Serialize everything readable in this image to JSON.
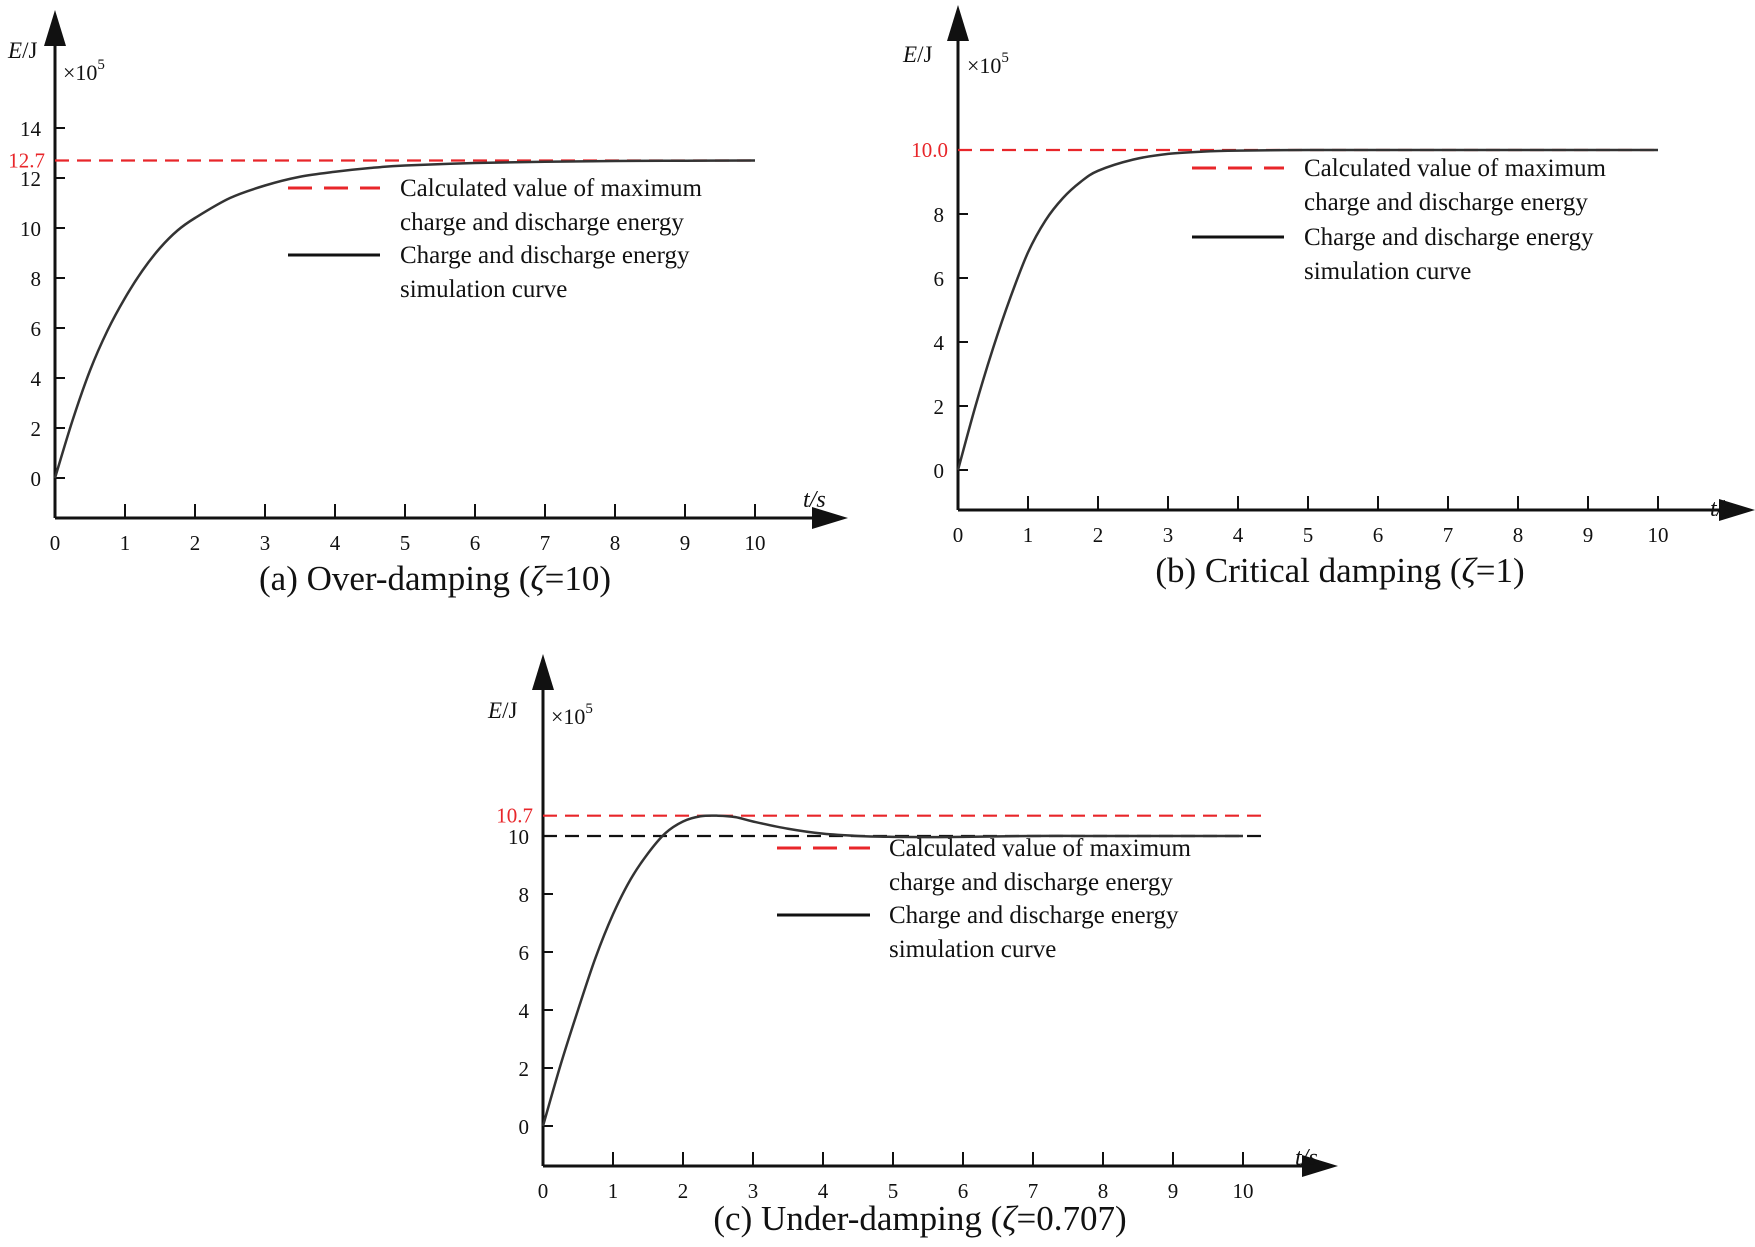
{
  "chart_data": [
    {
      "type": "line",
      "id": "a",
      "caption_prefix": "(a) Over-damping (",
      "caption_symbol": "ζ",
      "caption_suffix": "=10)",
      "ylabel_var": "E",
      "ylabel_unit": "/J",
      "ylabel_multiplier_base": "×10",
      "ylabel_multiplier_exp": "5",
      "xlabel": "t/s",
      "xlim": [
        0,
        10
      ],
      "ylim": [
        0,
        14
      ],
      "x_ticks": [
        "0",
        "1",
        "2",
        "3",
        "4",
        "5",
        "6",
        "7",
        "8",
        "9",
        "10"
      ],
      "y_ticks": [
        "0",
        "2",
        "4",
        "6",
        "8",
        "10",
        "12",
        "14"
      ],
      "y_tick_values": [
        0,
        2,
        4,
        6,
        8,
        10,
        12,
        14
      ],
      "reference_lines": [
        {
          "value": 12.7,
          "label": "12.7",
          "style": "red-dashed"
        }
      ],
      "series": [
        {
          "name": "Charge and discharge energy simulation curve",
          "x": [
            0,
            0.25,
            0.5,
            0.75,
            1,
            1.25,
            1.5,
            1.75,
            2,
            2.5,
            3,
            3.5,
            4,
            4.5,
            5,
            6,
            7,
            8,
            9,
            10
          ],
          "values": [
            0,
            2.3,
            4.3,
            5.9,
            7.2,
            8.3,
            9.2,
            9.9,
            10.4,
            11.2,
            11.7,
            12.05,
            12.25,
            12.4,
            12.5,
            12.6,
            12.65,
            12.68,
            12.69,
            12.7
          ]
        }
      ],
      "legend": [
        {
          "style": "red-dashed",
          "line1": "Calculated value of maximum",
          "line2": "charge and discharge energy"
        },
        {
          "style": "black-solid",
          "line1": "Charge and discharge energy",
          "line2": "simulation curve"
        }
      ]
    },
    {
      "type": "line",
      "id": "b",
      "caption_prefix": "(b) Critical damping (",
      "caption_symbol": "ζ",
      "caption_suffix": "=1)",
      "ylabel_var": "E",
      "ylabel_unit": "/J",
      "ylabel_multiplier_base": "×10",
      "ylabel_multiplier_exp": "5",
      "xlabel": "t/s",
      "xlim": [
        0,
        10
      ],
      "ylim": [
        0,
        10
      ],
      "x_ticks": [
        "0",
        "1",
        "2",
        "3",
        "4",
        "5",
        "6",
        "7",
        "8",
        "9",
        "10"
      ],
      "y_ticks": [
        "0",
        "2",
        "4",
        "6",
        "8"
      ],
      "y_tick_values": [
        0,
        2,
        4,
        6,
        8
      ],
      "reference_lines": [
        {
          "value": 10.0,
          "label": "10.0",
          "style": "red-dashed"
        }
      ],
      "series": [
        {
          "name": "Charge and discharge energy simulation curve",
          "x": [
            0,
            0.25,
            0.5,
            0.75,
            1,
            1.25,
            1.5,
            1.75,
            2,
            2.5,
            3,
            3.5,
            4,
            5,
            6,
            7,
            8,
            9,
            10
          ],
          "values": [
            0,
            2.0,
            3.8,
            5.4,
            6.8,
            7.8,
            8.5,
            9.0,
            9.35,
            9.7,
            9.88,
            9.95,
            9.98,
            10.0,
            10.0,
            10.0,
            10.0,
            10.0,
            10.0
          ]
        }
      ],
      "legend": [
        {
          "style": "red-dashed",
          "line1": "Calculated value of maximum",
          "line2": "charge and discharge energy"
        },
        {
          "style": "black-solid",
          "line1": "Charge and discharge energy",
          "line2": "simulation curve"
        }
      ]
    },
    {
      "type": "line",
      "id": "c",
      "caption_prefix": "(c) Under-damping (",
      "caption_symbol": "ζ",
      "caption_suffix": "=0.707)",
      "ylabel_var": "E",
      "ylabel_unit": "/J",
      "ylabel_multiplier_base": "×10",
      "ylabel_multiplier_exp": "5",
      "xlabel": "t/s",
      "xlim": [
        0,
        10
      ],
      "ylim": [
        0,
        10.7
      ],
      "x_ticks": [
        "0",
        "1",
        "2",
        "3",
        "4",
        "5",
        "6",
        "7",
        "8",
        "9",
        "10"
      ],
      "y_ticks": [
        "0",
        "2",
        "4",
        "6",
        "8",
        "10"
      ],
      "y_tick_values": [
        0,
        2,
        4,
        6,
        8,
        10
      ],
      "reference_lines": [
        {
          "value": 10.7,
          "label": "10.7",
          "style": "red-dashed"
        },
        {
          "value": 10,
          "label": "",
          "style": "black-dashed"
        }
      ],
      "series": [
        {
          "name": "Charge and discharge energy simulation curve",
          "x": [
            0,
            0.25,
            0.5,
            0.75,
            1,
            1.25,
            1.5,
            1.75,
            2,
            2.25,
            2.5,
            2.75,
            3,
            3.5,
            4,
            4.5,
            5,
            5.5,
            6,
            7,
            8,
            9,
            10
          ],
          "values": [
            0,
            2.1,
            4.0,
            5.8,
            7.3,
            8.5,
            9.4,
            10.1,
            10.5,
            10.68,
            10.7,
            10.65,
            10.5,
            10.25,
            10.08,
            10.0,
            9.97,
            9.96,
            9.97,
            10.0,
            10.0,
            10.0,
            10.0
          ]
        }
      ],
      "legend": [
        {
          "style": "red-dashed",
          "line1": "Calculated value of maximum",
          "line2": "charge and discharge energy"
        },
        {
          "style": "black-solid",
          "line1": "Charge and discharge energy",
          "line2": "simulation curve"
        }
      ]
    }
  ],
  "colors": {
    "red": "#e8262a",
    "black": "#111111",
    "curve": "#333333"
  }
}
